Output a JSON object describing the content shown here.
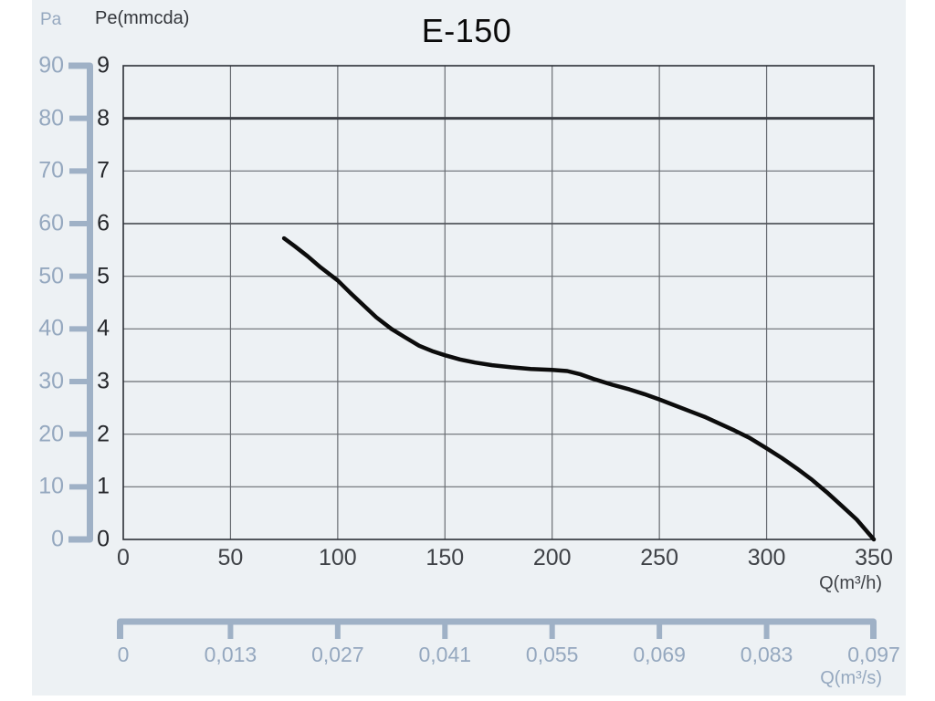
{
  "colors": {
    "panel_background": "#edf1f4",
    "page_margin": "#ffffff",
    "axis_blue": "#9fb1c6",
    "axis_blue_text": "#95a8bf",
    "grid": "#686c72",
    "grid_emphasis_strong": "#3b3e45",
    "grid_emphasis_medium": "#53565c",
    "plot_border": "#2c2f36",
    "curve": "#0c0c0c",
    "text_dark": "#26282c",
    "text_gray": "#3f4247"
  },
  "chart_data": {
    "type": "line",
    "title": "E-150",
    "grid": true,
    "x_axis": {
      "unit_label": "Q(m³/h)",
      "min": 0,
      "max": 350,
      "tick_step": 50,
      "tick_labels": [
        "0",
        "50",
        "100",
        "150",
        "200",
        "250",
        "300",
        "350"
      ]
    },
    "y_axis_inner": {
      "unit_label": "Pe(mmcda)",
      "min": 0,
      "max": 9,
      "tick_step": 1,
      "tick_labels": [
        "0",
        "1",
        "2",
        "3",
        "4",
        "5",
        "6",
        "7",
        "8",
        "9"
      ]
    },
    "y_axis_outer": {
      "unit_label": "Pa",
      "min": 0,
      "max": 90,
      "tick_step": 10,
      "tick_labels": [
        "0",
        "10",
        "20",
        "30",
        "40",
        "50",
        "60",
        "70",
        "80",
        "90"
      ]
    },
    "x_axis_outer": {
      "unit_label": "Q(m³/s)",
      "tick_labels": [
        "0",
        "0,013",
        "0,027",
        "0,041",
        "0,055",
        "0,069",
        "0,083",
        "0,097"
      ]
    },
    "series": [
      {
        "name": "E-150",
        "points": [
          [
            75,
            5.72
          ],
          [
            80,
            5.57
          ],
          [
            86,
            5.38
          ],
          [
            92,
            5.17
          ],
          [
            100,
            4.92
          ],
          [
            106,
            4.68
          ],
          [
            112,
            4.45
          ],
          [
            118,
            4.22
          ],
          [
            125,
            4.0
          ],
          [
            131,
            3.85
          ],
          [
            138,
            3.68
          ],
          [
            144,
            3.58
          ],
          [
            150,
            3.5
          ],
          [
            157,
            3.42
          ],
          [
            164,
            3.36
          ],
          [
            172,
            3.31
          ],
          [
            181,
            3.27
          ],
          [
            190,
            3.24
          ],
          [
            200,
            3.22
          ],
          [
            207,
            3.2
          ],
          [
            213,
            3.14
          ],
          [
            220,
            3.04
          ],
          [
            228,
            2.94
          ],
          [
            236,
            2.85
          ],
          [
            243,
            2.76
          ],
          [
            250,
            2.66
          ],
          [
            257,
            2.55
          ],
          [
            264,
            2.44
          ],
          [
            271,
            2.33
          ],
          [
            278,
            2.2
          ],
          [
            285,
            2.07
          ],
          [
            292,
            1.93
          ],
          [
            300,
            1.73
          ],
          [
            307,
            1.55
          ],
          [
            314,
            1.35
          ],
          [
            321,
            1.14
          ],
          [
            328,
            0.9
          ],
          [
            335,
            0.64
          ],
          [
            342,
            0.38
          ],
          [
            350,
            0.0
          ]
        ]
      }
    ]
  }
}
